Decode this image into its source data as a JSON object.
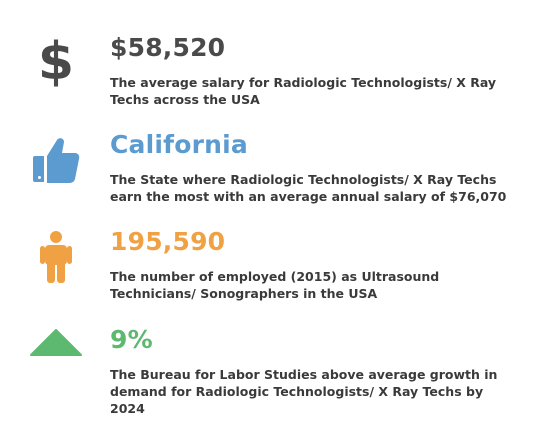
{
  "colors": {
    "text": "#3a3a3a",
    "salary": "#4a4a4a",
    "state": "#5b9bd0",
    "employed": "#f0a144",
    "growth": "#5cb96f"
  },
  "stats": [
    {
      "icon": "dollar-icon",
      "value": "$58,520",
      "description": "The average salary for Radiologic Technologists/ X Ray Techs across the USA"
    },
    {
      "icon": "thumbs-up-icon",
      "value": "California",
      "description": "The State where Radiologic Technologists/ X Ray Techs earn the most with an average annual salary of $76,070"
    },
    {
      "icon": "person-icon",
      "value": "195,590",
      "description": "The number of employed (2015) as Ultrasound Technicians/ Sonographers in the USA"
    },
    {
      "icon": "up-triangle-icon",
      "value": "9%",
      "description": "The Bureau for Labor Studies above average growth in demand for Radiologic Technologists/ X Ray Techs by 2024"
    }
  ]
}
